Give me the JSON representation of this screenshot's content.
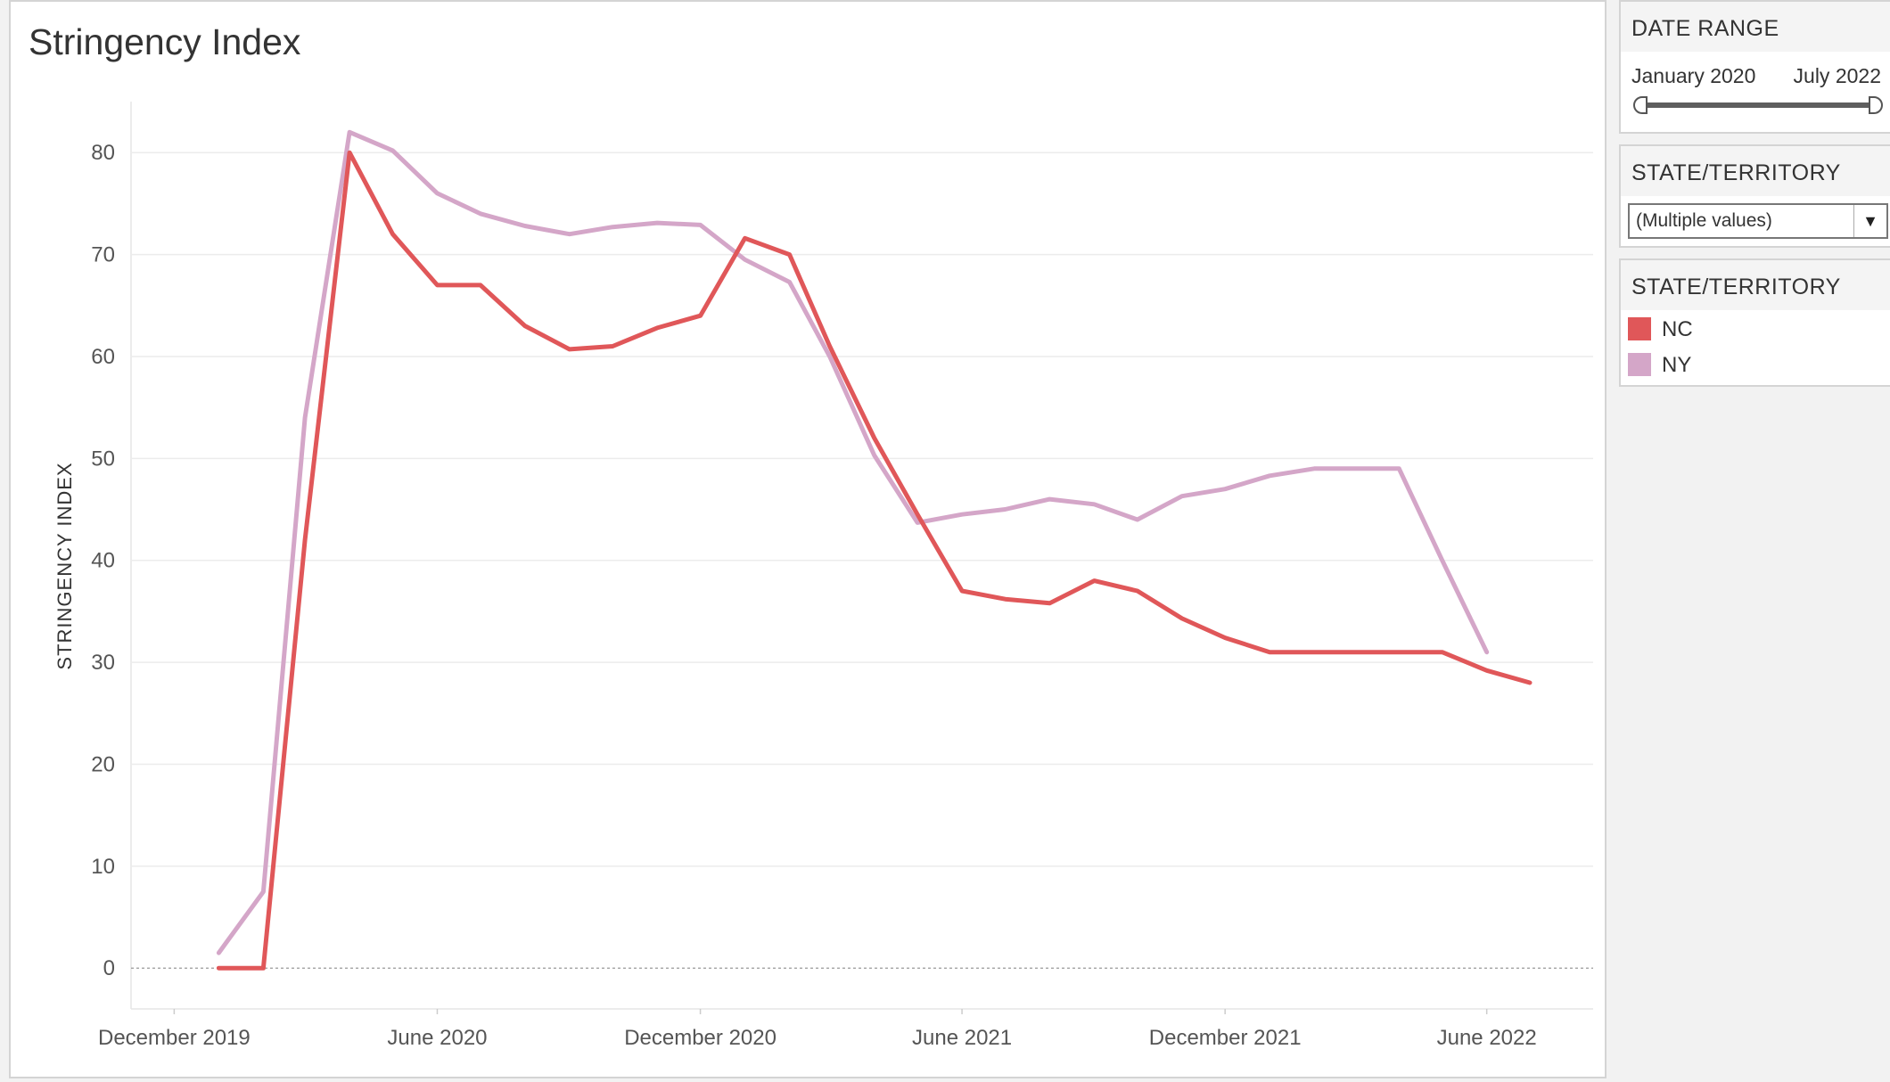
{
  "chart_data": {
    "type": "line",
    "title": "Stringency Index",
    "ylabel": "STRINGENCY INDEX",
    "xlabel": "",
    "ylim": [
      -4,
      85
    ],
    "yticks": [
      0,
      10,
      20,
      30,
      40,
      50,
      60,
      70,
      80
    ],
    "xlim": [
      "2019-11-01",
      "2022-08-14"
    ],
    "xticks": [
      {
        "date": "2019-12-01",
        "label": "December 2019"
      },
      {
        "date": "2020-06-01",
        "label": "June 2020"
      },
      {
        "date": "2020-12-01",
        "label": "December 2020"
      },
      {
        "date": "2021-06-01",
        "label": "June 2021"
      },
      {
        "date": "2021-12-01",
        "label": "December 2021"
      },
      {
        "date": "2022-06-01",
        "label": "June 2022"
      }
    ],
    "grid": true,
    "series": [
      {
        "name": "NC",
        "color": "#e05759",
        "points": [
          [
            "2020-01-01",
            0
          ],
          [
            "2020-02-01",
            0
          ],
          [
            "2020-03-01",
            42
          ],
          [
            "2020-04-01",
            80
          ],
          [
            "2020-05-01",
            72
          ],
          [
            "2020-06-01",
            67
          ],
          [
            "2020-07-01",
            67
          ],
          [
            "2020-08-01",
            63
          ],
          [
            "2020-09-01",
            60.7
          ],
          [
            "2020-10-01",
            61
          ],
          [
            "2020-11-01",
            62.8
          ],
          [
            "2020-12-01",
            64
          ],
          [
            "2021-01-01",
            71.6
          ],
          [
            "2021-02-01",
            70
          ],
          [
            "2021-03-01",
            61
          ],
          [
            "2021-04-01",
            52
          ],
          [
            "2021-05-01",
            44.5
          ],
          [
            "2021-06-01",
            37
          ],
          [
            "2021-07-01",
            36.2
          ],
          [
            "2021-08-01",
            35.8
          ],
          [
            "2021-09-01",
            38
          ],
          [
            "2021-10-01",
            37
          ],
          [
            "2021-11-01",
            34.3
          ],
          [
            "2021-12-01",
            32.4
          ],
          [
            "2022-01-01",
            31
          ],
          [
            "2022-02-01",
            31
          ],
          [
            "2022-03-01",
            31
          ],
          [
            "2022-04-01",
            31
          ],
          [
            "2022-05-01",
            31
          ],
          [
            "2022-06-01",
            29.2
          ],
          [
            "2022-07-01",
            28
          ]
        ]
      },
      {
        "name": "NY",
        "color": "#d4a6c8",
        "points": [
          [
            "2020-01-01",
            1.5
          ],
          [
            "2020-02-01",
            7.5
          ],
          [
            "2020-03-01",
            54
          ],
          [
            "2020-04-01",
            82
          ],
          [
            "2020-05-01",
            80.2
          ],
          [
            "2020-06-01",
            76
          ],
          [
            "2020-07-01",
            74
          ],
          [
            "2020-08-01",
            72.8
          ],
          [
            "2020-09-01",
            72
          ],
          [
            "2020-10-01",
            72.7
          ],
          [
            "2020-11-01",
            73.1
          ],
          [
            "2020-12-01",
            72.9
          ],
          [
            "2021-01-01",
            69.5
          ],
          [
            "2021-02-01",
            67.3
          ],
          [
            "2021-03-01",
            60
          ],
          [
            "2021-04-01",
            50.3
          ],
          [
            "2021-05-01",
            43.7
          ],
          [
            "2021-06-01",
            44.5
          ],
          [
            "2021-07-01",
            45
          ],
          [
            "2021-08-01",
            46
          ],
          [
            "2021-09-01",
            45.5
          ],
          [
            "2021-10-01",
            44
          ],
          [
            "2021-11-01",
            46.3
          ],
          [
            "2021-12-01",
            47
          ],
          [
            "2022-01-01",
            48.3
          ],
          [
            "2022-02-01",
            49
          ],
          [
            "2022-03-01",
            49
          ],
          [
            "2022-04-01",
            49
          ],
          [
            "2022-05-01",
            40
          ],
          [
            "2022-06-01",
            31
          ]
        ]
      }
    ]
  },
  "date_filter": {
    "header": "DATE RANGE",
    "start_label": "January 2020",
    "end_label": "July 2022"
  },
  "state_filter": {
    "header": "STATE/TERRITORY",
    "selected": "(Multiple values)"
  },
  "legend": {
    "header": "STATE/TERRITORY",
    "items": [
      {
        "label": "NC",
        "color": "#e05759"
      },
      {
        "label": "NY",
        "color": "#d4a6c8"
      }
    ]
  }
}
